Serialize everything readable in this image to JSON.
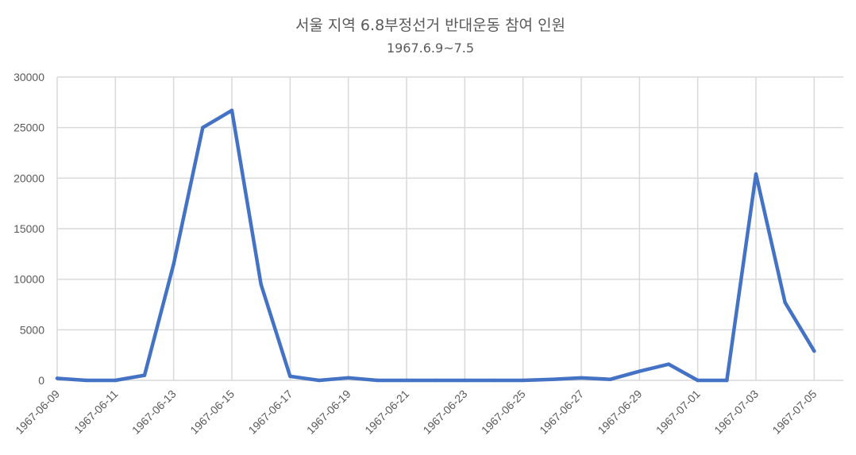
{
  "chart_data": {
    "type": "line",
    "title": "서울 지역 6.8부정선거 반대운동 참여 인원",
    "subtitle": "1967.6.9~7.5",
    "xlabel": "",
    "ylabel": "",
    "ylim": [
      0,
      30000
    ],
    "yticks": [
      0,
      5000,
      10000,
      15000,
      20000,
      25000,
      30000
    ],
    "xlim": [
      "1967-06-09",
      "1967-07-06"
    ],
    "xticks": [
      "1967-06-09",
      "1967-06-11",
      "1967-06-13",
      "1967-06-15",
      "1967-06-17",
      "1967-06-19",
      "1967-06-21",
      "1967-06-23",
      "1967-06-25",
      "1967-06-27",
      "1967-06-29",
      "1967-07-01",
      "1967-07-03",
      "1967-07-05"
    ],
    "grid": true,
    "legend": "none",
    "series": [
      {
        "color": "#4472c4",
        "points": [
          {
            "x": "1967-06-09",
            "y": 200
          },
          {
            "x": "1967-06-10",
            "y": 0
          },
          {
            "x": "1967-06-11",
            "y": 0
          },
          {
            "x": "1967-06-12",
            "y": 500
          },
          {
            "x": "1967-06-13",
            "y": 11500
          },
          {
            "x": "1967-06-14",
            "y": 25000
          },
          {
            "x": "1967-06-15",
            "y": 26700
          },
          {
            "x": "1967-06-16",
            "y": 9500
          },
          {
            "x": "1967-06-17",
            "y": 400
          },
          {
            "x": "1967-06-18",
            "y": 0
          },
          {
            "x": "1967-06-19",
            "y": 250
          },
          {
            "x": "1967-06-20",
            "y": 0
          },
          {
            "x": "1967-06-21",
            "y": 0
          },
          {
            "x": "1967-06-22",
            "y": 0
          },
          {
            "x": "1967-06-23",
            "y": 0
          },
          {
            "x": "1967-06-24",
            "y": 0
          },
          {
            "x": "1967-06-25",
            "y": 0
          },
          {
            "x": "1967-06-26",
            "y": 100
          },
          {
            "x": "1967-06-27",
            "y": 250
          },
          {
            "x": "1967-06-28",
            "y": 100
          },
          {
            "x": "1967-06-29",
            "y": 900
          },
          {
            "x": "1967-06-30",
            "y": 1600
          },
          {
            "x": "1967-07-01",
            "y": 0
          },
          {
            "x": "1967-07-02",
            "y": 0
          },
          {
            "x": "1967-07-03",
            "y": 20400
          },
          {
            "x": "1967-07-04",
            "y": 7700
          },
          {
            "x": "1967-07-05",
            "y": 2900
          }
        ]
      }
    ]
  }
}
